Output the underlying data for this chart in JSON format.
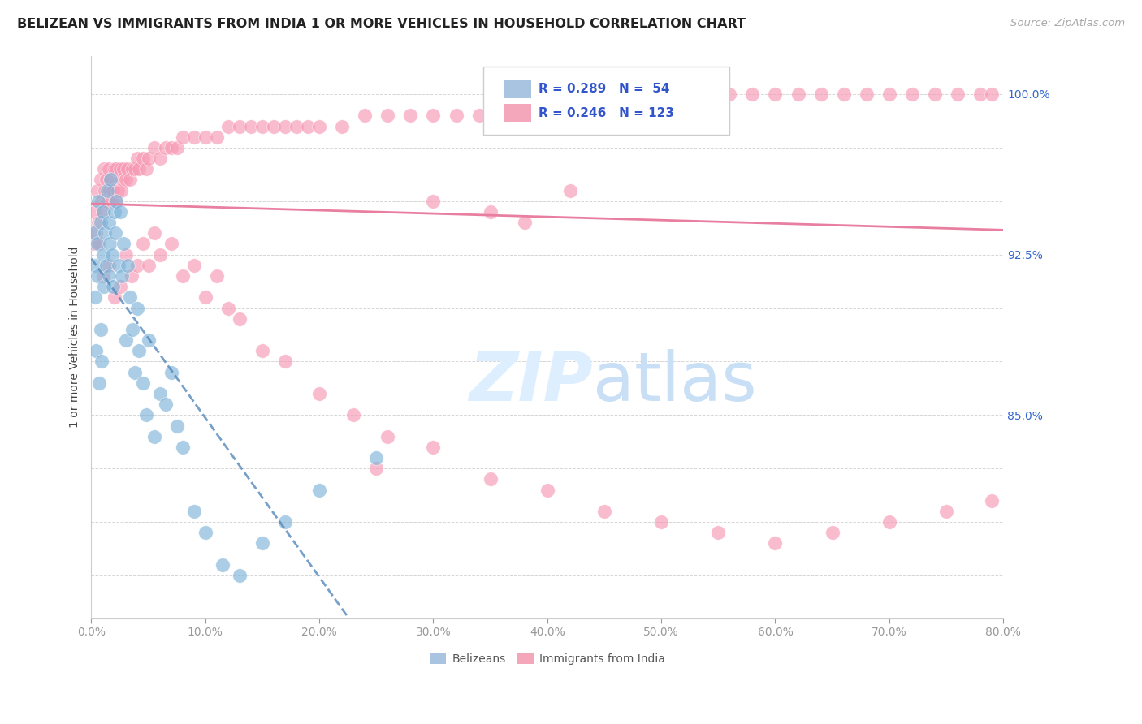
{
  "title": "BELIZEAN VS IMMIGRANTS FROM INDIA 1 OR MORE VEHICLES IN HOUSEHOLD CORRELATION CHART",
  "source": "Source: ZipAtlas.com",
  "ylabel": "1 or more Vehicles in Household",
  "xmin": 0.0,
  "xmax": 0.8,
  "ymin": 75.5,
  "ymax": 101.8,
  "ytick_positions": [
    77.5,
    80.0,
    82.5,
    85.0,
    87.5,
    90.0,
    92.5,
    95.0,
    97.5,
    100.0
  ],
  "ytick_labels": [
    "",
    "",
    "",
    "85.0%",
    "",
    "",
    "92.5%",
    "",
    "",
    "100.0%"
  ],
  "ytick_labels_right_show": [
    false,
    false,
    false,
    true,
    false,
    false,
    true,
    false,
    false,
    true
  ],
  "belizean_color": "#7eb3d8",
  "india_color": "#f799b4",
  "trendline_belizean_color": "#5588bb",
  "trendline_india_color": "#e87fa0",
  "watermark_color": "#ddeeff",
  "legend_box_color": "#a8c4e0",
  "legend_pink_color": "#f4a7bb",
  "legend_text_color": "#3355cc",
  "grid_color": "#cccccc",
  "axis_color": "#cccccc",
  "xtick_color": "#999999",
  "right_tick_color": "#3366cc",
  "belizean_x": [
    0.002,
    0.003,
    0.003,
    0.004,
    0.005,
    0.005,
    0.006,
    0.007,
    0.008,
    0.008,
    0.009,
    0.01,
    0.01,
    0.011,
    0.012,
    0.013,
    0.014,
    0.015,
    0.015,
    0.016,
    0.017,
    0.018,
    0.019,
    0.02,
    0.021,
    0.022,
    0.024,
    0.025,
    0.027,
    0.028,
    0.03,
    0.032,
    0.034,
    0.036,
    0.038,
    0.04,
    0.042,
    0.045,
    0.048,
    0.05,
    0.055,
    0.06,
    0.065,
    0.07,
    0.075,
    0.08,
    0.09,
    0.1,
    0.115,
    0.13,
    0.15,
    0.17,
    0.2,
    0.25
  ],
  "belizean_y": [
    93.5,
    90.5,
    92.0,
    88.0,
    93.0,
    91.5,
    95.0,
    86.5,
    94.0,
    89.0,
    87.5,
    92.5,
    94.5,
    91.0,
    93.5,
    92.0,
    95.5,
    91.5,
    94.0,
    93.0,
    96.0,
    92.5,
    91.0,
    94.5,
    93.5,
    95.0,
    92.0,
    94.5,
    91.5,
    93.0,
    88.5,
    92.0,
    90.5,
    89.0,
    87.0,
    90.0,
    88.0,
    86.5,
    85.0,
    88.5,
    84.0,
    86.0,
    85.5,
    87.0,
    84.5,
    83.5,
    80.5,
    79.5,
    78.0,
    77.5,
    79.0,
    80.0,
    81.5,
    83.0
  ],
  "india_x": [
    0.002,
    0.003,
    0.004,
    0.005,
    0.006,
    0.007,
    0.008,
    0.009,
    0.01,
    0.011,
    0.012,
    0.013,
    0.014,
    0.015,
    0.016,
    0.017,
    0.018,
    0.019,
    0.02,
    0.021,
    0.022,
    0.023,
    0.025,
    0.026,
    0.027,
    0.028,
    0.03,
    0.032,
    0.034,
    0.036,
    0.038,
    0.04,
    0.042,
    0.045,
    0.048,
    0.05,
    0.055,
    0.06,
    0.065,
    0.07,
    0.075,
    0.08,
    0.09,
    0.1,
    0.11,
    0.12,
    0.13,
    0.14,
    0.15,
    0.16,
    0.17,
    0.18,
    0.19,
    0.2,
    0.22,
    0.24,
    0.26,
    0.28,
    0.3,
    0.32,
    0.34,
    0.36,
    0.38,
    0.4,
    0.42,
    0.44,
    0.46,
    0.48,
    0.5,
    0.52,
    0.54,
    0.56,
    0.58,
    0.6,
    0.62,
    0.64,
    0.66,
    0.68,
    0.7,
    0.72,
    0.74,
    0.76,
    0.78,
    0.79,
    0.01,
    0.015,
    0.02,
    0.025,
    0.03,
    0.035,
    0.04,
    0.045,
    0.05,
    0.055,
    0.06,
    0.07,
    0.08,
    0.09,
    0.1,
    0.11,
    0.12,
    0.13,
    0.15,
    0.17,
    0.2,
    0.23,
    0.26,
    0.3,
    0.35,
    0.4,
    0.45,
    0.5,
    0.55,
    0.6,
    0.65,
    0.7,
    0.75,
    0.79,
    0.3,
    0.35,
    0.38,
    0.42,
    0.25
  ],
  "india_y": [
    93.0,
    94.5,
    93.5,
    95.5,
    94.0,
    93.0,
    96.0,
    95.0,
    94.5,
    96.5,
    95.5,
    96.0,
    95.0,
    96.5,
    95.5,
    96.0,
    95.0,
    95.5,
    96.5,
    95.0,
    96.5,
    95.5,
    96.5,
    95.5,
    96.0,
    96.5,
    96.0,
    96.5,
    96.0,
    96.5,
    96.5,
    97.0,
    96.5,
    97.0,
    96.5,
    97.0,
    97.5,
    97.0,
    97.5,
    97.5,
    97.5,
    98.0,
    98.0,
    98.0,
    98.0,
    98.5,
    98.5,
    98.5,
    98.5,
    98.5,
    98.5,
    98.5,
    98.5,
    98.5,
    98.5,
    99.0,
    99.0,
    99.0,
    99.0,
    99.0,
    99.0,
    99.0,
    99.5,
    99.5,
    99.5,
    99.5,
    99.5,
    99.5,
    100.0,
    100.0,
    100.0,
    100.0,
    100.0,
    100.0,
    100.0,
    100.0,
    100.0,
    100.0,
    100.0,
    100.0,
    100.0,
    100.0,
    100.0,
    100.0,
    91.5,
    92.0,
    90.5,
    91.0,
    92.5,
    91.5,
    92.0,
    93.0,
    92.0,
    93.5,
    92.5,
    93.0,
    91.5,
    92.0,
    90.5,
    91.5,
    90.0,
    89.5,
    88.0,
    87.5,
    86.0,
    85.0,
    84.0,
    83.5,
    82.0,
    81.5,
    80.5,
    80.0,
    79.5,
    79.0,
    79.5,
    80.0,
    80.5,
    81.0,
    95.0,
    94.5,
    94.0,
    95.5,
    82.5
  ]
}
